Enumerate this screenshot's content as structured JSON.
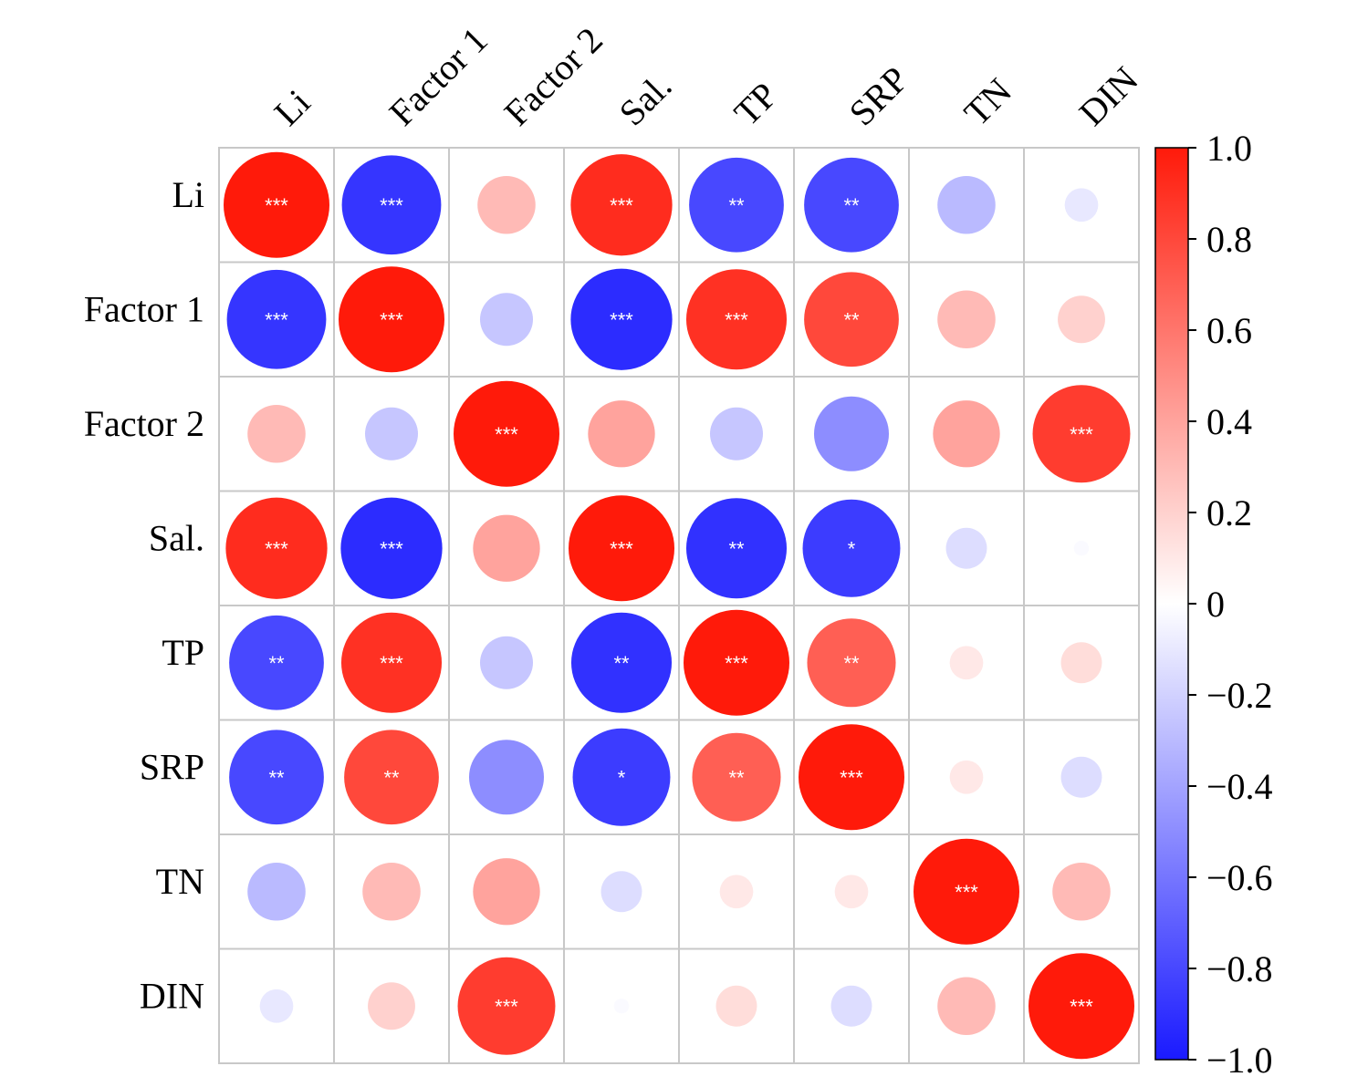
{
  "chart_data": {
    "type": "heatmap",
    "variables": [
      "Li",
      "Factor 1",
      "Factor 2",
      "Sal.",
      "TP",
      "SRP",
      "TN",
      "DIN"
    ],
    "matrix": [
      [
        1.0,
        -0.88,
        0.3,
        0.92,
        -0.8,
        -0.8,
        -0.3,
        -0.1
      ],
      [
        -0.88,
        1.0,
        -0.25,
        -0.92,
        0.9,
        0.8,
        0.3,
        0.2
      ],
      [
        0.3,
        -0.25,
        1.0,
        0.4,
        -0.25,
        -0.5,
        0.4,
        0.85
      ],
      [
        0.92,
        -0.92,
        0.4,
        1.0,
        -0.9,
        -0.85,
        -0.15,
        -0.02
      ],
      [
        -0.8,
        0.9,
        -0.25,
        -0.9,
        1.0,
        0.7,
        0.1,
        0.15
      ],
      [
        -0.8,
        0.8,
        -0.5,
        -0.85,
        0.7,
        1.0,
        0.1,
        -0.15
      ],
      [
        -0.3,
        0.3,
        0.4,
        -0.15,
        0.1,
        0.1,
        1.0,
        0.3
      ],
      [
        -0.1,
        0.2,
        0.85,
        -0.02,
        0.15,
        -0.15,
        0.3,
        1.0
      ]
    ],
    "significance": [
      [
        "***",
        "***",
        "",
        "***",
        "**",
        "**",
        "",
        ""
      ],
      [
        "***",
        "***",
        "",
        "***",
        "***",
        "**",
        "",
        ""
      ],
      [
        "",
        "",
        "***",
        "",
        "",
        "",
        "",
        "***"
      ],
      [
        "***",
        "***",
        "",
        "***",
        "**",
        "*",
        "",
        ""
      ],
      [
        "**",
        "***",
        "",
        "**",
        "***",
        "**",
        "",
        ""
      ],
      [
        "**",
        "**",
        "",
        "*",
        "**",
        "***",
        "",
        ""
      ],
      [
        "",
        "",
        "",
        "",
        "",
        "",
        "***",
        ""
      ],
      [
        "",
        "",
        "***",
        "",
        "",
        "",
        "",
        "***"
      ]
    ],
    "colorbar": {
      "range": [
        -1.0,
        1.0
      ],
      "tick_values": [
        1.0,
        0.8,
        0.6,
        0.4,
        0.2,
        0,
        -0.2,
        -0.4,
        -0.6,
        -0.8,
        -1.0
      ],
      "tick_labels": [
        "1.0",
        "0.8",
        "0.6",
        "0.4",
        "0.2",
        "0",
        "−0.2",
        "−0.4",
        "−0.6",
        "−0.8",
        "−1.0"
      ],
      "colors": {
        "negative": "#1a1aff",
        "zero": "#ffffff",
        "positive": "#ff1a0a"
      }
    },
    "grid_color": "#c8c8c8",
    "title": "",
    "xlabel": "",
    "ylabel": ""
  }
}
